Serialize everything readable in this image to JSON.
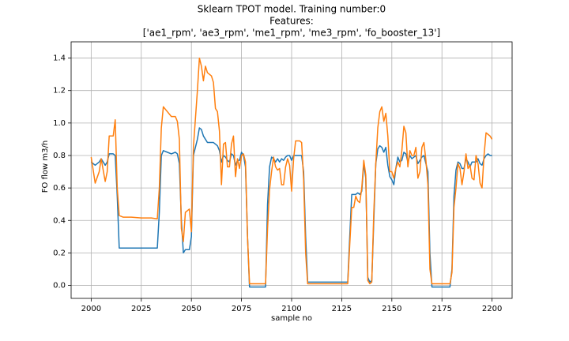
{
  "chart_data": {
    "type": "line",
    "title": [
      "Sklearn TPOT model. Training number:0",
      "Features:",
      "['ae1_rpm', 'ae3_rpm', 'me1_rpm', 'me3_rpm', 'fo_booster_13']"
    ],
    "xlabel": "sample no",
    "ylabel": "FO flow m3/h",
    "x": [
      2000,
      2002,
      2004,
      2005,
      2007,
      2008,
      2009,
      2011,
      2012,
      2013,
      2014,
      2016,
      2020,
      2025,
      2030,
      2033,
      2034,
      2035,
      2036,
      2038,
      2040,
      2042,
      2043,
      2044,
      2045,
      2046,
      2047,
      2048,
      2049,
      2050,
      2051,
      2053,
      2054,
      2055,
      2056,
      2057,
      2058,
      2060,
      2061,
      2062,
      2063,
      2064,
      2065,
      2066,
      2067,
      2068,
      2069,
      2070,
      2071,
      2072,
      2073,
      2074,
      2075,
      2076,
      2077,
      2078,
      2079,
      2082,
      2087,
      2088,
      2089,
      2090,
      2091,
      2092,
      2093,
      2094,
      2095,
      2096,
      2097,
      2098,
      2099,
      2100,
      2101,
      2102,
      2104,
      2105,
      2106,
      2107,
      2108,
      2110,
      2120,
      2128,
      2129,
      2130,
      2131,
      2132,
      2133,
      2134,
      2135,
      2136,
      2137,
      2138,
      2139,
      2140,
      2141,
      2142,
      2143,
      2144,
      2145,
      2146,
      2147,
      2148,
      2149,
      2150,
      2151,
      2152,
      2153,
      2154,
      2155,
      2156,
      2157,
      2158,
      2159,
      2160,
      2161,
      2162,
      2163,
      2164,
      2165,
      2166,
      2167,
      2168,
      2169,
      2170,
      2175,
      2179,
      2180,
      2181,
      2182,
      2183,
      2184,
      2185,
      2186,
      2187,
      2188,
      2189,
      2190,
      2191,
      2192,
      2193,
      2194,
      2195,
      2196,
      2197,
      2198,
      2199,
      2200
    ],
    "series": [
      {
        "color": "#1f77b4",
        "values": [
          0.76,
          0.74,
          0.76,
          0.78,
          0.74,
          0.76,
          0.81,
          0.81,
          0.8,
          0.55,
          0.23,
          0.23,
          0.23,
          0.23,
          0.23,
          0.23,
          0.45,
          0.8,
          0.83,
          0.82,
          0.81,
          0.82,
          0.81,
          0.75,
          0.4,
          0.2,
          0.22,
          0.22,
          0.22,
          0.3,
          0.8,
          0.9,
          0.97,
          0.96,
          0.92,
          0.9,
          0.88,
          0.88,
          0.88,
          0.87,
          0.86,
          0.83,
          0.76,
          0.8,
          0.79,
          0.77,
          0.76,
          0.81,
          0.8,
          0.74,
          0.77,
          0.77,
          0.82,
          0.8,
          0.73,
          0.3,
          -0.01,
          -0.01,
          -0.01,
          0.5,
          0.73,
          0.79,
          0.78,
          0.76,
          0.78,
          0.76,
          0.78,
          0.77,
          0.79,
          0.8,
          0.8,
          0.77,
          0.8,
          0.8,
          0.8,
          0.8,
          0.7,
          0.3,
          0.02,
          0.02,
          0.02,
          0.02,
          0.3,
          0.56,
          0.56,
          0.56,
          0.57,
          0.56,
          0.58,
          0.75,
          0.66,
          0.05,
          0.02,
          0.03,
          0.4,
          0.75,
          0.84,
          0.86,
          0.85,
          0.82,
          0.85,
          0.74,
          0.67,
          0.65,
          0.62,
          0.72,
          0.79,
          0.76,
          0.77,
          0.82,
          0.81,
          0.76,
          0.8,
          0.78,
          0.79,
          0.8,
          0.75,
          0.77,
          0.79,
          0.8,
          0.75,
          0.7,
          0.2,
          -0.01,
          -0.01,
          -0.01,
          0.1,
          0.55,
          0.71,
          0.76,
          0.75,
          0.72,
          0.72,
          0.78,
          0.76,
          0.73,
          0.76,
          0.76,
          0.76,
          0.78,
          0.75,
          0.74,
          0.78,
          0.8,
          0.81,
          0.8,
          0.8
        ]
      },
      {
        "color": "#ff7f0e",
        "values": [
          0.79,
          0.63,
          0.7,
          0.78,
          0.64,
          0.7,
          0.92,
          0.92,
          1.02,
          0.6,
          0.43,
          0.42,
          0.42,
          0.415,
          0.415,
          0.41,
          0.6,
          0.97,
          1.1,
          1.07,
          1.04,
          1.04,
          1.01,
          0.9,
          0.35,
          0.27,
          0.45,
          0.46,
          0.47,
          0.33,
          0.85,
          1.2,
          1.4,
          1.35,
          1.26,
          1.35,
          1.31,
          1.29,
          1.25,
          1.09,
          1.07,
          0.95,
          0.62,
          0.87,
          0.88,
          0.73,
          0.73,
          0.87,
          0.92,
          0.67,
          0.78,
          0.72,
          0.8,
          0.81,
          0.76,
          0.3,
          0.01,
          0.01,
          0.01,
          0.35,
          0.59,
          0.7,
          0.79,
          0.73,
          0.71,
          0.72,
          0.62,
          0.62,
          0.73,
          0.78,
          0.74,
          0.58,
          0.78,
          0.89,
          0.89,
          0.88,
          0.65,
          0.2,
          0.01,
          0.01,
          0.01,
          0.01,
          0.25,
          0.48,
          0.48,
          0.55,
          0.52,
          0.51,
          0.6,
          0.77,
          0.68,
          0.03,
          0.01,
          0.02,
          0.45,
          0.75,
          0.97,
          1.07,
          1.1,
          1.01,
          1.06,
          0.92,
          0.7,
          0.7,
          0.66,
          0.72,
          0.76,
          0.73,
          0.83,
          0.98,
          0.94,
          0.73,
          0.83,
          0.8,
          0.8,
          0.85,
          0.66,
          0.7,
          0.85,
          0.88,
          0.77,
          0.62,
          0.1,
          0.01,
          0.01,
          0.01,
          0.08,
          0.48,
          0.6,
          0.75,
          0.72,
          0.62,
          0.7,
          0.81,
          0.72,
          0.74,
          0.66,
          0.65,
          0.8,
          0.75,
          0.63,
          0.6,
          0.8,
          0.94,
          0.93,
          0.92,
          0.9
        ]
      }
    ],
    "xlim": [
      1990,
      2210
    ],
    "xticks": [
      2000,
      2025,
      2050,
      2075,
      2100,
      2125,
      2150,
      2175,
      2200
    ],
    "ylim": [
      -0.08,
      1.5
    ],
    "yticks": [
      {
        "value": 0,
        "label": "0.0"
      },
      0.2,
      0.4,
      0.6,
      0.8,
      {
        "value": 1,
        "label": "1.0"
      },
      1.2,
      1.4
    ],
    "grid": true
  }
}
